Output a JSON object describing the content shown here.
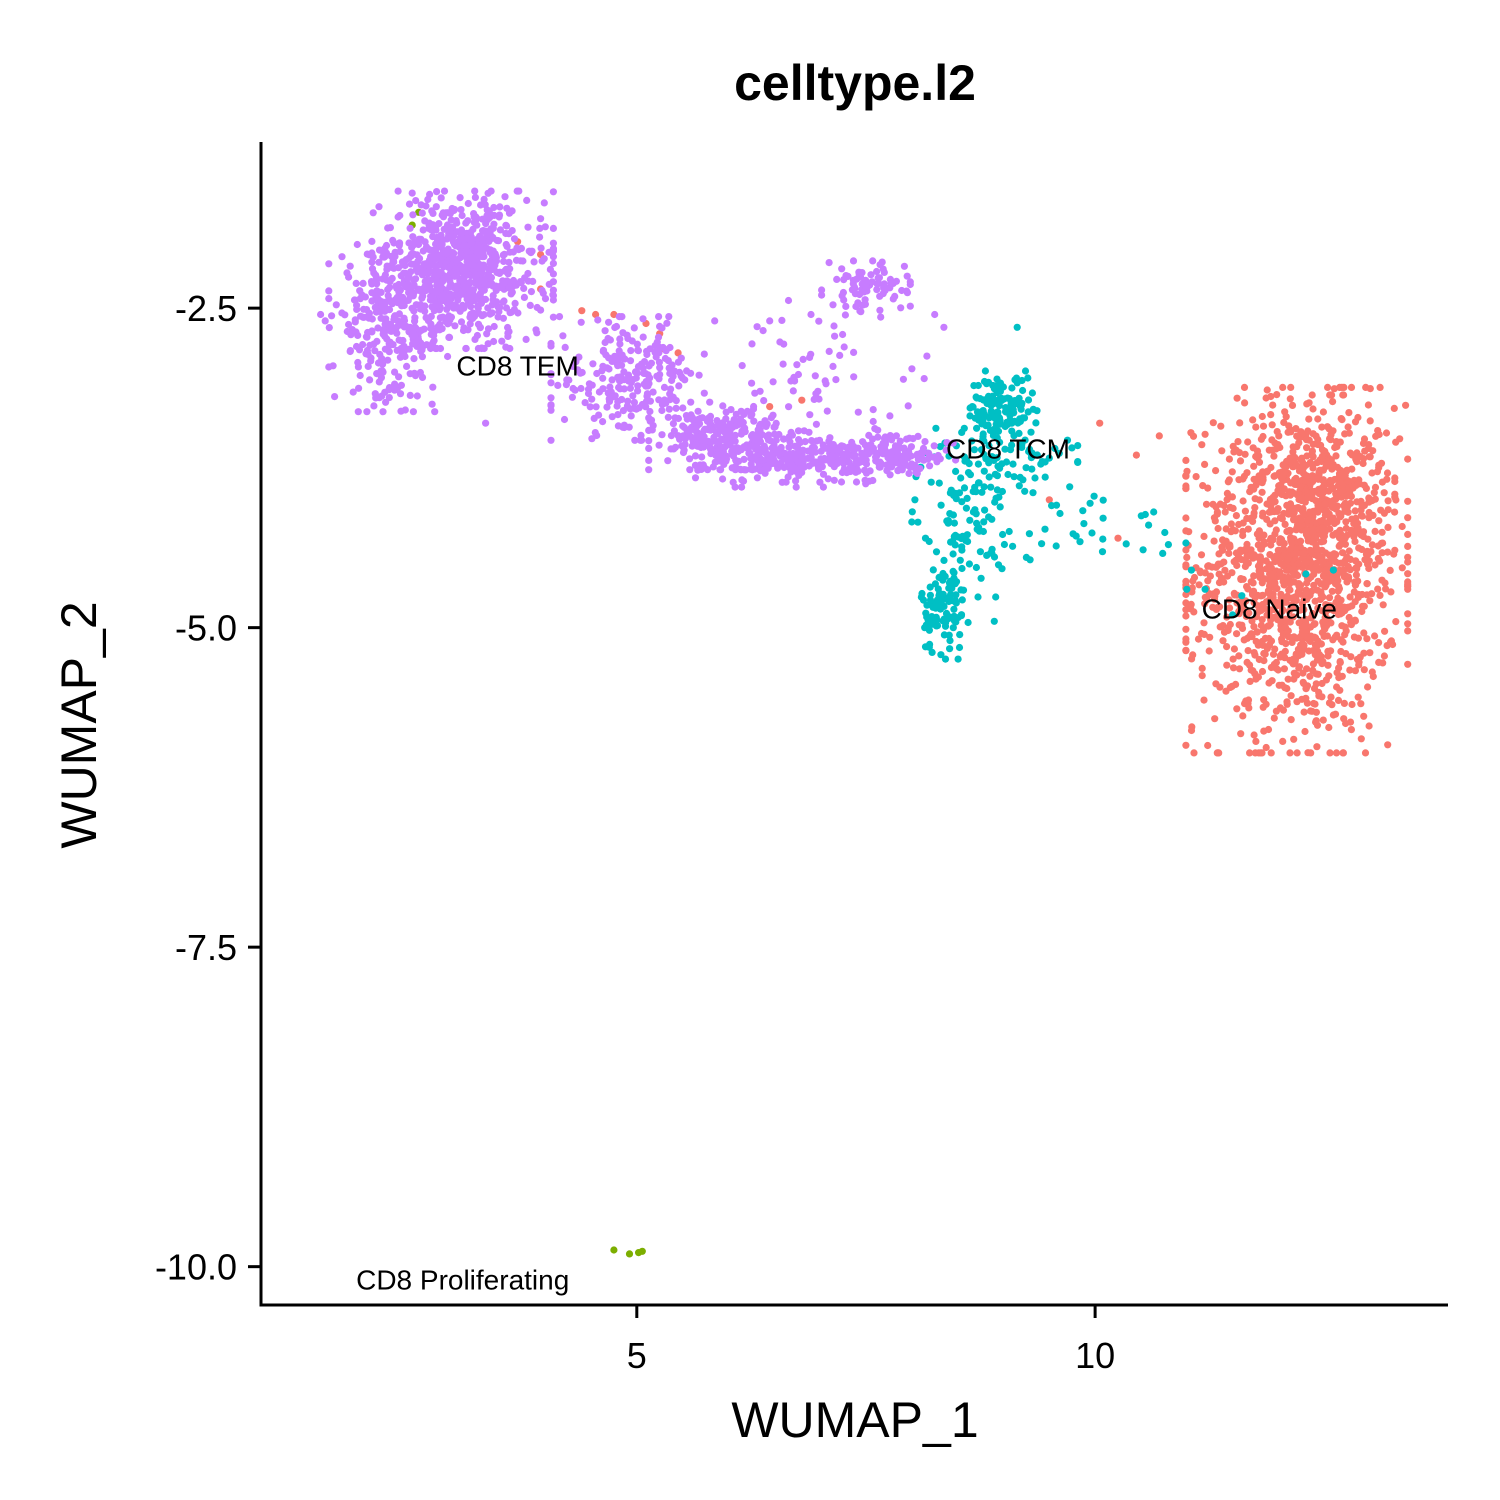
{
  "chart_data": {
    "type": "scatter",
    "title": "celltype.l2",
    "xlabel": "WUMAP_1",
    "ylabel": "WUMAP_2",
    "xlim": [
      0.9,
      13.85
    ],
    "ylim": [
      -10.3,
      -1.2
    ],
    "xticks": [
      5,
      10
    ],
    "xtick_labels": [
      "5",
      "10"
    ],
    "yticks": [
      -2.5,
      -5.0,
      -7.5,
      -10.0
    ],
    "ytick_labels": [
      "-2.5",
      "-5.0",
      "-7.5",
      "-10.0"
    ],
    "grid": false,
    "legend": "none",
    "series": [
      {
        "name": "CD8 Naive",
        "color": "#F8766D",
        "label_pos": [
          11.9,
          -4.85
        ],
        "clusters": [
          {
            "cx": 12.2,
            "cy": -4.55,
            "sx": 0.55,
            "sy": 0.65,
            "n": 1300
          },
          {
            "cx": 12.5,
            "cy": -3.95,
            "sx": 0.35,
            "sy": 0.35,
            "n": 250
          }
        ],
        "points": [
          [
            4.4,
            -2.52
          ],
          [
            4.55,
            -2.55
          ],
          [
            4.75,
            -2.55
          ],
          [
            5.1,
            -2.62
          ],
          [
            5.25,
            -2.7
          ],
          [
            5.3,
            -2.82
          ],
          [
            5.45,
            -2.85
          ],
          [
            6.45,
            -3.27
          ],
          [
            6.8,
            -3.22
          ],
          [
            10.05,
            -3.4
          ],
          [
            10.7,
            -3.5
          ],
          [
            10.45,
            -3.65
          ],
          [
            10.25,
            -4.3
          ],
          [
            11.0,
            -4.45
          ],
          [
            9.5,
            -4.0
          ],
          [
            3.45,
            -2.15
          ],
          [
            3.7,
            -1.98
          ],
          [
            3.95,
            -2.08
          ],
          [
            3.95,
            -2.35
          ]
        ]
      },
      {
        "name": "CD8 Proliferating",
        "color": "#7CAE00",
        "label_pos": [
          3.1,
          -10.1
        ],
        "clusters": [],
        "points": [
          [
            4.75,
            -9.87
          ],
          [
            4.92,
            -9.9
          ],
          [
            5.02,
            -9.89
          ],
          [
            5.06,
            -9.88
          ],
          [
            2.55,
            -1.85
          ],
          [
            2.62,
            -1.75
          ]
        ]
      },
      {
        "name": "CD8 TCM",
        "color": "#00BFC4",
        "label_pos": [
          9.05,
          -3.6
        ],
        "clusters": [
          {
            "cx": 8.97,
            "cy": -3.3,
            "sx": 0.18,
            "sy": 0.14,
            "n": 140
          },
          {
            "cx": 8.55,
            "cy": -4.1,
            "sx": 0.25,
            "sy": 0.3,
            "n": 100
          },
          {
            "cx": 8.35,
            "cy": -4.85,
            "sx": 0.12,
            "sy": 0.18,
            "n": 100
          },
          {
            "cx": 9.15,
            "cy": -3.75,
            "sx": 0.3,
            "sy": 0.15,
            "n": 60
          },
          {
            "cx": 10.0,
            "cy": -4.2,
            "sx": 0.45,
            "sy": 0.18,
            "n": 30
          }
        ],
        "points": [
          [
            9.15,
            -2.65
          ],
          [
            8.15,
            -5.15
          ],
          [
            8.9,
            -4.95
          ],
          [
            11.2,
            -4.7
          ],
          [
            11.5,
            -4.9
          ],
          [
            11.6,
            -4.75
          ],
          [
            12.3,
            -4.58
          ],
          [
            12.6,
            -4.55
          ],
          [
            11.0,
            -4.7
          ],
          [
            11.05,
            -4.55
          ],
          [
            9.25,
            -4.45
          ],
          [
            10.8,
            -4.35
          ]
        ]
      },
      {
        "name": "CD8 TEM",
        "color": "#C77CFF",
        "label_pos": [
          3.7,
          -2.95
        ],
        "clusters": [
          {
            "cx": 3.1,
            "cy": -2.2,
            "sx": 0.45,
            "sy": 0.28,
            "n": 750
          },
          {
            "cx": 2.3,
            "cy": -2.65,
            "sx": 0.3,
            "sy": 0.3,
            "n": 280
          },
          {
            "cx": 4.9,
            "cy": -3.05,
            "sx": 0.38,
            "sy": 0.22,
            "n": 230
          },
          {
            "cx": 5.9,
            "cy": -3.5,
            "sx": 0.35,
            "sy": 0.12,
            "n": 230
          },
          {
            "cx": 6.85,
            "cy": -3.68,
            "sx": 0.55,
            "sy": 0.1,
            "n": 280
          },
          {
            "cx": 7.75,
            "cy": -3.65,
            "sx": 0.35,
            "sy": 0.07,
            "n": 120
          },
          {
            "cx": 7.5,
            "cy": -2.35,
            "sx": 0.22,
            "sy": 0.1,
            "n": 80
          },
          {
            "cx": 7.0,
            "cy": -3.1,
            "sx": 0.6,
            "sy": 0.3,
            "n": 70
          }
        ],
        "points": [
          [
            1.55,
            -2.55
          ],
          [
            1.6,
            -2.6
          ],
          [
            2.55,
            -1.6
          ],
          [
            2.72,
            -1.65
          ],
          [
            3.95,
            -1.8
          ],
          [
            2.3,
            -3.2
          ],
          [
            3.35,
            -3.4
          ],
          [
            5.85,
            -2.6
          ],
          [
            6.45,
            -2.6
          ],
          [
            6.9,
            -2.55
          ],
          [
            7.95,
            -2.25
          ],
          [
            8.35,
            -2.65
          ],
          [
            8.25,
            -2.55
          ]
        ]
      }
    ]
  }
}
